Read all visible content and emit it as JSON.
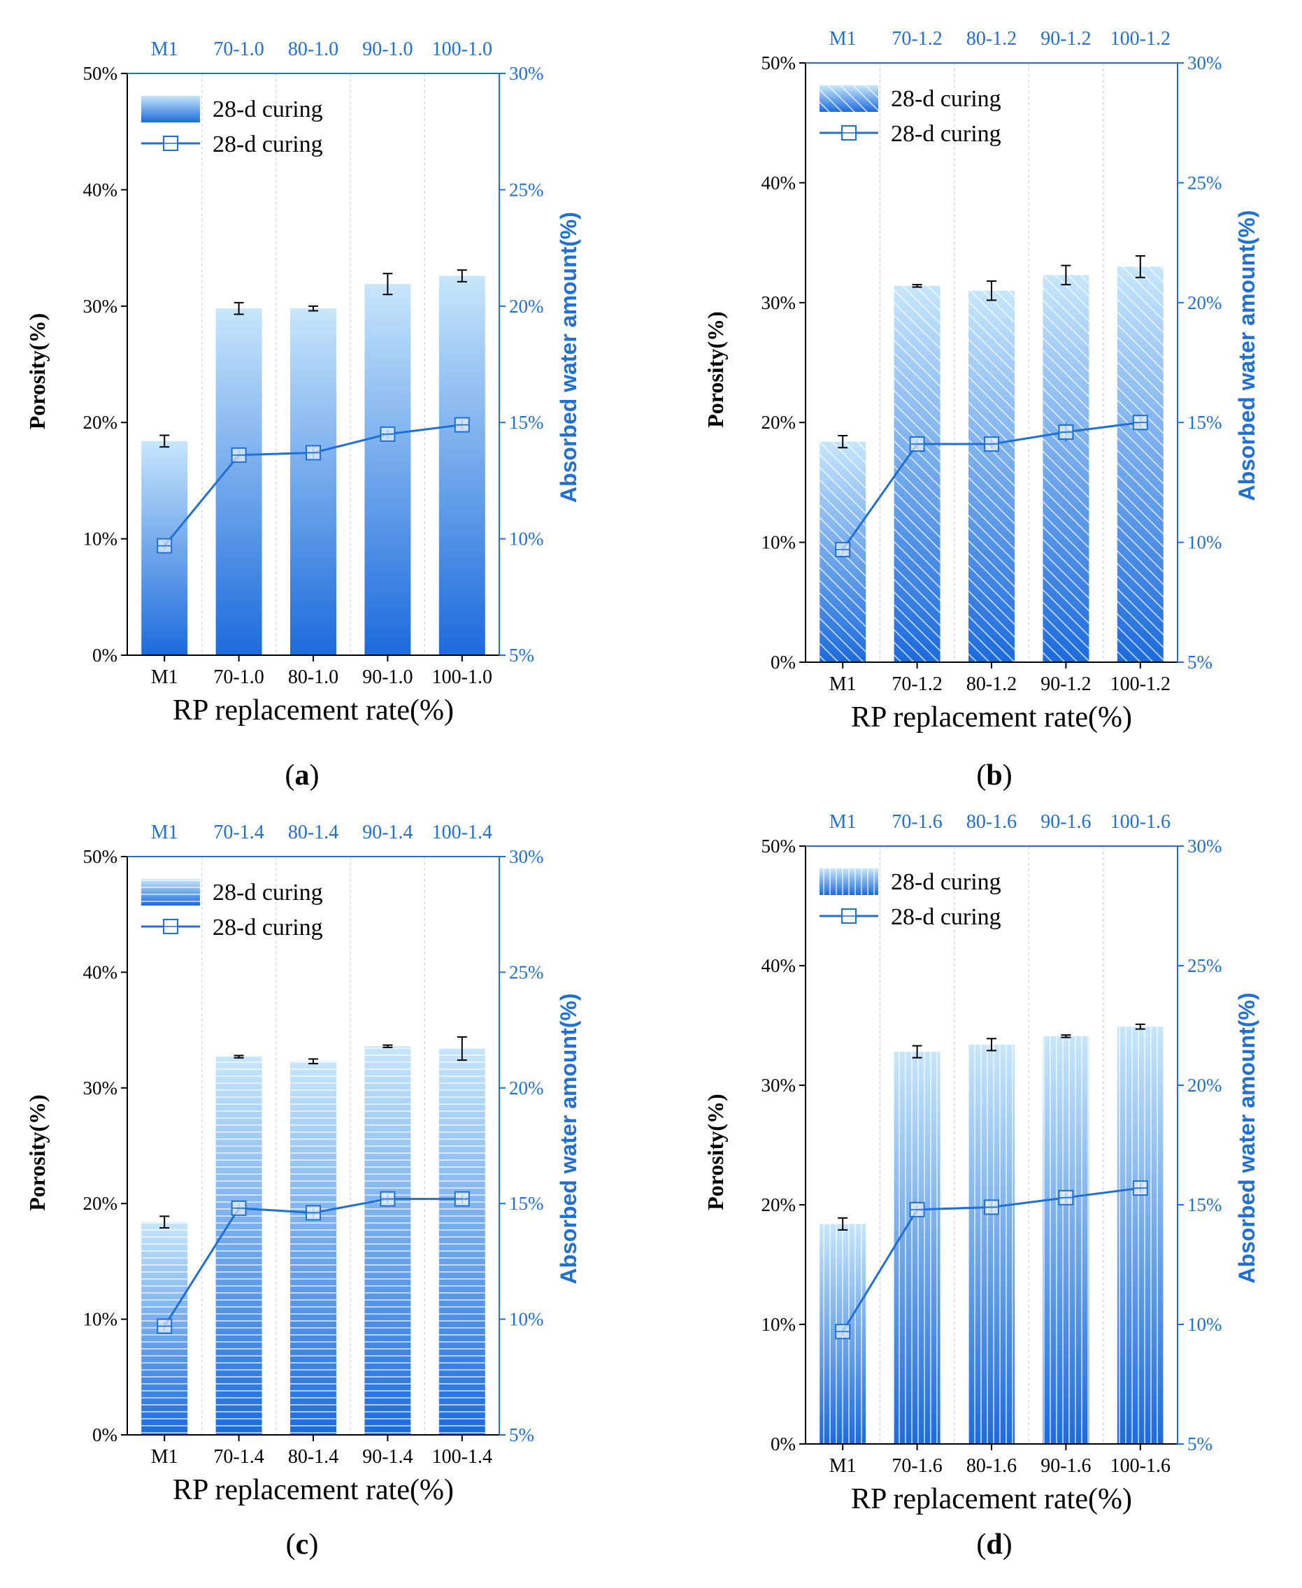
{
  "colors": {
    "axis_right": "#1f6fd4",
    "line": "#1f6fd4",
    "bar_top": "#c7e6fb",
    "bar_bottom": "#1c6bdc",
    "text": "#000000"
  },
  "chart_data": [
    {
      "type": "bar",
      "panel_label": "a",
      "pattern": "solid",
      "categories": [
        "M1",
        "70-1.0",
        "80-1.0",
        "90-1.0",
        "100-1.0"
      ],
      "xlabel": "RP replacement rate(%)",
      "ylabel_left": "Porosity(%)",
      "ylabel_right": "Absorbed water amount(%)",
      "ylim_left": [
        0,
        50
      ],
      "ylim_right": [
        5,
        30
      ],
      "left_ticks": [
        "0%",
        "10%",
        "20%",
        "30%",
        "40%",
        "50%"
      ],
      "right_ticks": [
        "5%",
        "10%",
        "15%",
        "20%",
        "25%",
        "30%"
      ],
      "legend": [
        "28-d curing",
        "28-d curing"
      ],
      "series": [
        {
          "name": "28-d curing",
          "kind": "bar",
          "axis": "left",
          "values": [
            18.4,
            29.8,
            29.8,
            31.9,
            32.6
          ],
          "errors": [
            0.5,
            0.5,
            0.2,
            0.9,
            0.5
          ]
        },
        {
          "name": "28-d curing",
          "kind": "line",
          "axis": "right",
          "values": [
            9.7,
            13.6,
            13.7,
            14.5,
            14.9
          ],
          "errors": [
            0.2,
            0.2,
            0.3,
            0.2,
            0.2
          ]
        }
      ]
    },
    {
      "type": "bar",
      "panel_label": "b",
      "pattern": "diagonal",
      "categories": [
        "M1",
        "70-1.2",
        "80-1.2",
        "90-1.2",
        "100-1.2"
      ],
      "xlabel": "RP replacement rate(%)",
      "ylabel_left": "Porosity(%)",
      "ylabel_right": "Absorbed water amount(%)",
      "ylim_left": [
        0,
        50
      ],
      "ylim_right": [
        5,
        30
      ],
      "left_ticks": [
        "0%",
        "10%",
        "20%",
        "30%",
        "40%",
        "50%"
      ],
      "right_ticks": [
        "5%",
        "10%",
        "15%",
        "20%",
        "25%",
        "30%"
      ],
      "legend": [
        "28-d curing",
        "28-d curing"
      ],
      "series": [
        {
          "name": "28-d curing",
          "kind": "bar",
          "axis": "left",
          "values": [
            18.4,
            31.4,
            31.0,
            32.3,
            33.0
          ],
          "errors": [
            0.5,
            0.1,
            0.8,
            0.8,
            0.9
          ]
        },
        {
          "name": "28-d curing",
          "kind": "line",
          "axis": "right",
          "values": [
            9.7,
            14.1,
            14.1,
            14.6,
            15.0
          ],
          "errors": [
            0.2,
            0.2,
            0.2,
            0.4,
            0.2
          ]
        }
      ]
    },
    {
      "type": "bar",
      "panel_label": "c",
      "pattern": "horizontal",
      "categories": [
        "M1",
        "70-1.4",
        "80-1.4",
        "90-1.4",
        "100-1.4"
      ],
      "xlabel": "RP replacement rate(%)",
      "ylabel_left": "Porosity(%)",
      "ylabel_right": "Absorbed water amount(%)",
      "ylim_left": [
        0,
        50
      ],
      "ylim_right": [
        5,
        30
      ],
      "left_ticks": [
        "0%",
        "10%",
        "20%",
        "30%",
        "40%",
        "50%"
      ],
      "right_ticks": [
        "5%",
        "10%",
        "15%",
        "20%",
        "25%",
        "30%"
      ],
      "legend": [
        "28-d curing",
        "28-d curing"
      ],
      "series": [
        {
          "name": "28-d curing",
          "kind": "bar",
          "axis": "left",
          "values": [
            18.4,
            32.7,
            32.3,
            33.6,
            33.4
          ],
          "errors": [
            0.5,
            0.1,
            0.2,
            0.1,
            1.0
          ]
        },
        {
          "name": "28-d curing",
          "kind": "line",
          "axis": "right",
          "values": [
            9.7,
            14.8,
            14.6,
            15.2,
            15.2
          ],
          "errors": [
            0.2,
            0.2,
            0.2,
            0.2,
            0.2
          ]
        }
      ]
    },
    {
      "type": "bar",
      "panel_label": "d",
      "pattern": "vertical",
      "categories": [
        "M1",
        "70-1.6",
        "80-1.6",
        "90-1.6",
        "100-1.6"
      ],
      "xlabel": "RP replacement rate(%)",
      "ylabel_left": "Porosity(%)",
      "ylabel_right": "Absorbed water amount(%)",
      "ylim_left": [
        0,
        50
      ],
      "ylim_right": [
        5,
        30
      ],
      "left_ticks": [
        "0%",
        "10%",
        "20%",
        "30%",
        "40%",
        "50%"
      ],
      "right_ticks": [
        "5%",
        "10%",
        "15%",
        "20%",
        "25%",
        "30%"
      ],
      "legend": [
        "28-d curing",
        "28-d curing"
      ],
      "series": [
        {
          "name": "28-d curing",
          "kind": "bar",
          "axis": "left",
          "values": [
            18.4,
            32.8,
            33.4,
            34.1,
            34.9
          ],
          "errors": [
            0.5,
            0.5,
            0.5,
            0.1,
            0.2
          ]
        },
        {
          "name": "28-d curing",
          "kind": "line",
          "axis": "right",
          "values": [
            9.7,
            14.8,
            14.9,
            15.3,
            15.7
          ],
          "errors": [
            0.2,
            0.2,
            0.2,
            0.2,
            0.2
          ]
        }
      ]
    }
  ]
}
